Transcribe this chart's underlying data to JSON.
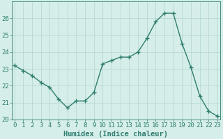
{
  "x": [
    0,
    1,
    2,
    3,
    4,
    5,
    6,
    7,
    8,
    9,
    10,
    11,
    12,
    13,
    14,
    15,
    16,
    17,
    18,
    19,
    20,
    21,
    22,
    23
  ],
  "y": [
    23.2,
    22.9,
    22.6,
    22.2,
    21.9,
    21.2,
    20.7,
    21.1,
    21.1,
    21.6,
    23.3,
    23.5,
    23.7,
    23.7,
    24.0,
    24.8,
    25.8,
    26.3,
    26.3,
    24.5,
    23.1,
    21.4,
    20.5,
    20.2
  ],
  "line_color": "#2e7d6d",
  "marker": "+",
  "marker_size": 4,
  "bg_color": "#d6eeea",
  "grid_color": "#b8d8d4",
  "tick_color": "#2e7d6d",
  "xlabel": "Humidex (Indice chaleur)",
  "ylim": [
    20,
    27
  ],
  "yticks": [
    20,
    21,
    22,
    23,
    24,
    25,
    26
  ],
  "xlim": [
    -0.3,
    23.3
  ],
  "xlabel_fontsize": 7.5,
  "tick_fontsize": 6.5,
  "line_width": 1.0
}
